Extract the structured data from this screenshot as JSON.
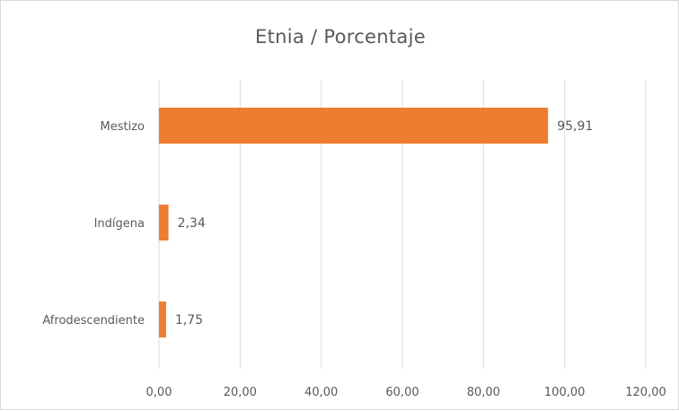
{
  "chart_data": {
    "type": "bar",
    "orientation": "horizontal",
    "title": "Etnia / Porcentaje",
    "categories": [
      "Mestizo",
      "Indígena",
      "Afrodescendiente"
    ],
    "values": [
      95.91,
      2.34,
      1.75
    ],
    "data_labels": [
      "95,91",
      "2,34",
      "1,75"
    ],
    "x_ticks": [
      0,
      20,
      40,
      60,
      80,
      100,
      120
    ],
    "x_tick_labels": [
      "0,00",
      "20,00",
      "40,00",
      "60,00",
      "80,00",
      "100,00",
      "120,00"
    ],
    "xlim": [
      0,
      120
    ],
    "grid": true,
    "legend": "none",
    "bar_color": "#ED7D31"
  }
}
